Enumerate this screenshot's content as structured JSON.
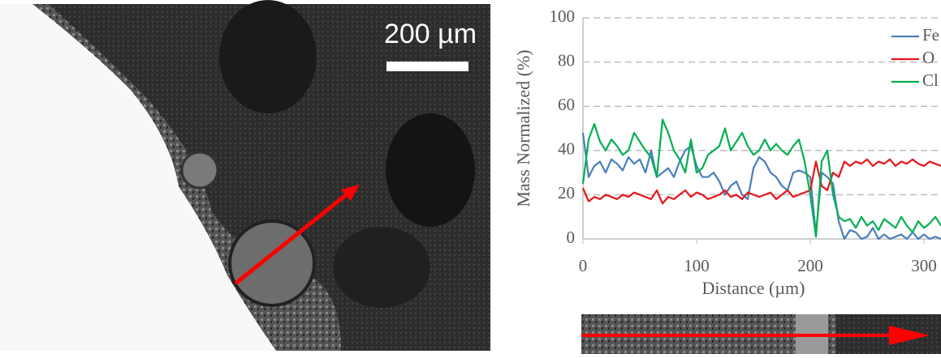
{
  "micrograph": {
    "scale_label": "200 µm"
  },
  "chart_data": {
    "type": "line",
    "x_label": "Distance (µm)",
    "y_label": "Mass Normalized (%)",
    "x": [
      0,
      5,
      10,
      15,
      20,
      25,
      30,
      35,
      40,
      45,
      50,
      55,
      60,
      65,
      70,
      75,
      80,
      85,
      90,
      95,
      100,
      105,
      110,
      115,
      120,
      125,
      130,
      135,
      140,
      145,
      150,
      155,
      160,
      165,
      170,
      175,
      180,
      185,
      190,
      195,
      200,
      205,
      210,
      215,
      220,
      225,
      230,
      235,
      240,
      245,
      250,
      255,
      260,
      265,
      270,
      275,
      280,
      285,
      290,
      295,
      300,
      305,
      310,
      315
    ],
    "series": [
      {
        "name": "Fe",
        "color": "#4a7ebb",
        "values": [
          48,
          28,
          33,
          35,
          30,
          36,
          34,
          31,
          37,
          34,
          36,
          30,
          40,
          28,
          30,
          32,
          28,
          35,
          40,
          42,
          33,
          28,
          28,
          30,
          26,
          20,
          24,
          26,
          20,
          18,
          32,
          37,
          35,
          30,
          28,
          24,
          22,
          30,
          31,
          30,
          28,
          2,
          30,
          28,
          25,
          8,
          0,
          4,
          3,
          0,
          1,
          5,
          0,
          2,
          0,
          1,
          2,
          0,
          3,
          0,
          2,
          0,
          1,
          0
        ]
      },
      {
        "name": "O",
        "color": "#e8141b",
        "values": [
          23,
          17,
          19,
          18,
          20,
          19,
          18,
          20,
          19,
          21,
          20,
          19,
          18,
          22,
          16,
          19,
          18,
          20,
          22,
          19,
          21,
          20,
          18,
          19,
          20,
          22,
          19,
          20,
          18,
          21,
          20,
          19,
          20,
          21,
          18,
          20,
          22,
          19,
          20,
          21,
          22,
          35,
          24,
          22,
          30,
          28,
          35,
          33,
          35,
          34,
          36,
          33,
          35,
          34,
          36,
          33,
          35,
          34,
          36,
          34,
          33,
          35,
          34,
          33
        ]
      },
      {
        "name": "Cl",
        "color": "#00b050",
        "values": [
          25,
          45,
          52,
          44,
          40,
          45,
          42,
          38,
          40,
          48,
          44,
          40,
          37,
          28,
          54,
          48,
          40,
          36,
          30,
          45,
          30,
          32,
          38,
          40,
          42,
          50,
          40,
          44,
          48,
          42,
          38,
          40,
          45,
          40,
          43,
          40,
          38,
          42,
          45,
          35,
          20,
          1,
          35,
          40,
          20,
          10,
          8,
          9,
          5,
          10,
          6,
          8,
          4,
          9,
          7,
          5,
          10,
          6,
          3,
          8,
          5,
          7,
          10,
          6
        ]
      }
    ],
    "xlim": [
      0,
      315
    ],
    "xticks": [
      0,
      100,
      200,
      300
    ],
    "ylim": [
      0,
      100
    ],
    "yticks": [
      0,
      20,
      40,
      60,
      80,
      100
    ],
    "grid": true,
    "legend": "top-right"
  }
}
